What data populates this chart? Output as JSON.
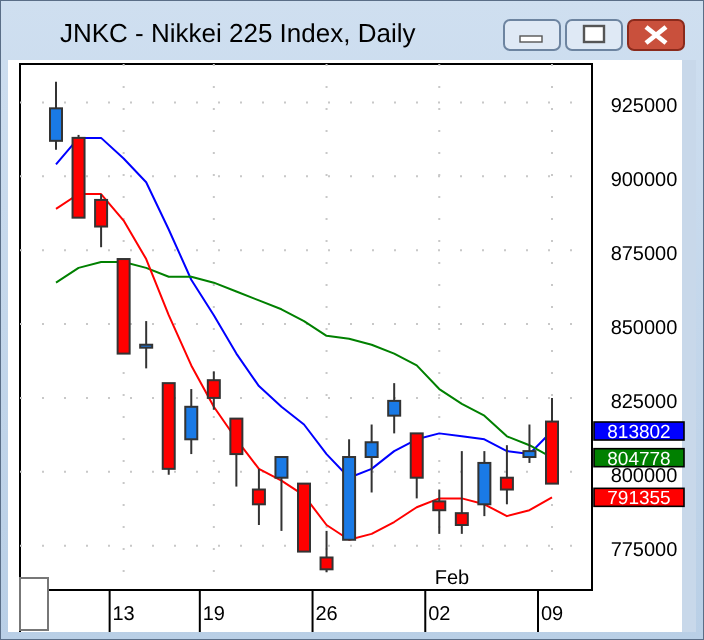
{
  "chart_data": {
    "type": "candlestick",
    "title": "JNKC - Nikkei 225 Index, Daily",
    "categories": [
      null,
      null,
      null,
      "13",
      null,
      null,
      null,
      "19",
      null,
      null,
      null,
      null,
      "26",
      null,
      null,
      null,
      null,
      "02",
      null,
      null,
      null,
      null,
      "09"
    ],
    "ohlc": [
      [
        912000,
        932000,
        909000,
        923000
      ],
      [
        913000,
        914000,
        886000,
        886000
      ],
      [
        892000,
        894000,
        876000,
        883000
      ],
      [
        872000,
        872000,
        840000,
        840000
      ],
      [
        842000,
        851000,
        835000,
        843000
      ],
      [
        830000,
        830000,
        799000,
        801000
      ],
      [
        811000,
        828000,
        806000,
        822000
      ],
      [
        831000,
        834000,
        821000,
        825000
      ],
      [
        818000,
        818000,
        795000,
        806000
      ],
      [
        794000,
        801000,
        782000,
        789000
      ],
      [
        798000,
        805000,
        780000,
        805000
      ],
      [
        796000,
        796000,
        773000,
        773000
      ],
      [
        771000,
        780000,
        766000,
        767000
      ],
      [
        777000,
        811000,
        777000,
        805000
      ],
      [
        805000,
        816000,
        793000,
        810000
      ],
      [
        819000,
        830000,
        813000,
        824000
      ],
      [
        813000,
        813000,
        791000,
        798000
      ],
      [
        790000,
        794000,
        779000,
        787000
      ],
      [
        786000,
        807000,
        779000,
        782000
      ],
      [
        789000,
        807000,
        785000,
        803000
      ],
      [
        798000,
        809000,
        789000,
        794000
      ],
      [
        805000,
        816000,
        803000,
        807000
      ],
      [
        817000,
        825000,
        796000,
        796000
      ]
    ],
    "colors": [
      "#1a7ae6",
      "#ff0000",
      "#ff0000",
      "#ff0000",
      "#1a7ae6",
      "#ff0000",
      "#1a7ae6",
      "#ff0000",
      "#ff0000",
      "#ff0000",
      "#1a7ae6",
      "#ff0000",
      "#ff0000",
      "#1a7ae6",
      "#1a7ae6",
      "#1a7ae6",
      "#ff0000",
      "#ff0000",
      "#ff0000",
      "#1a7ae6",
      "#ff0000",
      "#1a7ae6",
      "#ff0000"
    ],
    "series": [
      {
        "type": "line",
        "color": "#0000ff",
        "values": [
          904000,
          913000,
          913000,
          906000,
          898000,
          882000,
          865000,
          853000,
          840000,
          829000,
          822000,
          816000,
          806000,
          798000,
          801000,
          807000,
          811000,
          813000,
          812000,
          811000,
          807000,
          806000,
          813802
        ]
      },
      {
        "type": "line",
        "color": "#008000",
        "values": [
          864000,
          869000,
          871000,
          871000,
          869000,
          866000,
          866000,
          864000,
          861000,
          858000,
          855000,
          851000,
          846000,
          845000,
          843000,
          840000,
          836000,
          828000,
          823000,
          819000,
          812000,
          809000,
          804778
        ]
      },
      {
        "type": "line",
        "color": "#ff0000",
        "values": [
          889000,
          894000,
          894000,
          885000,
          872000,
          853000,
          836000,
          822000,
          811000,
          801000,
          797000,
          792000,
          782000,
          777000,
          779000,
          783000,
          788000,
          791000,
          791000,
          789000,
          785000,
          787000,
          791355
        ]
      }
    ],
    "y2lim": [
      760000,
      938000
    ],
    "y2ticks": [
      {
        "value": 813802,
        "label": "813802"
      },
      {
        "value": 804778,
        "label": "804778"
      },
      {
        "value": 791355,
        "label": "791355"
      }
    ],
    "ylim": [
      760000,
      938000
    ],
    "yticks": [
      775000,
      800000,
      825000,
      850000,
      875000,
      900000,
      925000
    ],
    "grid": true,
    "annotations": [
      "Feb"
    ]
  }
}
